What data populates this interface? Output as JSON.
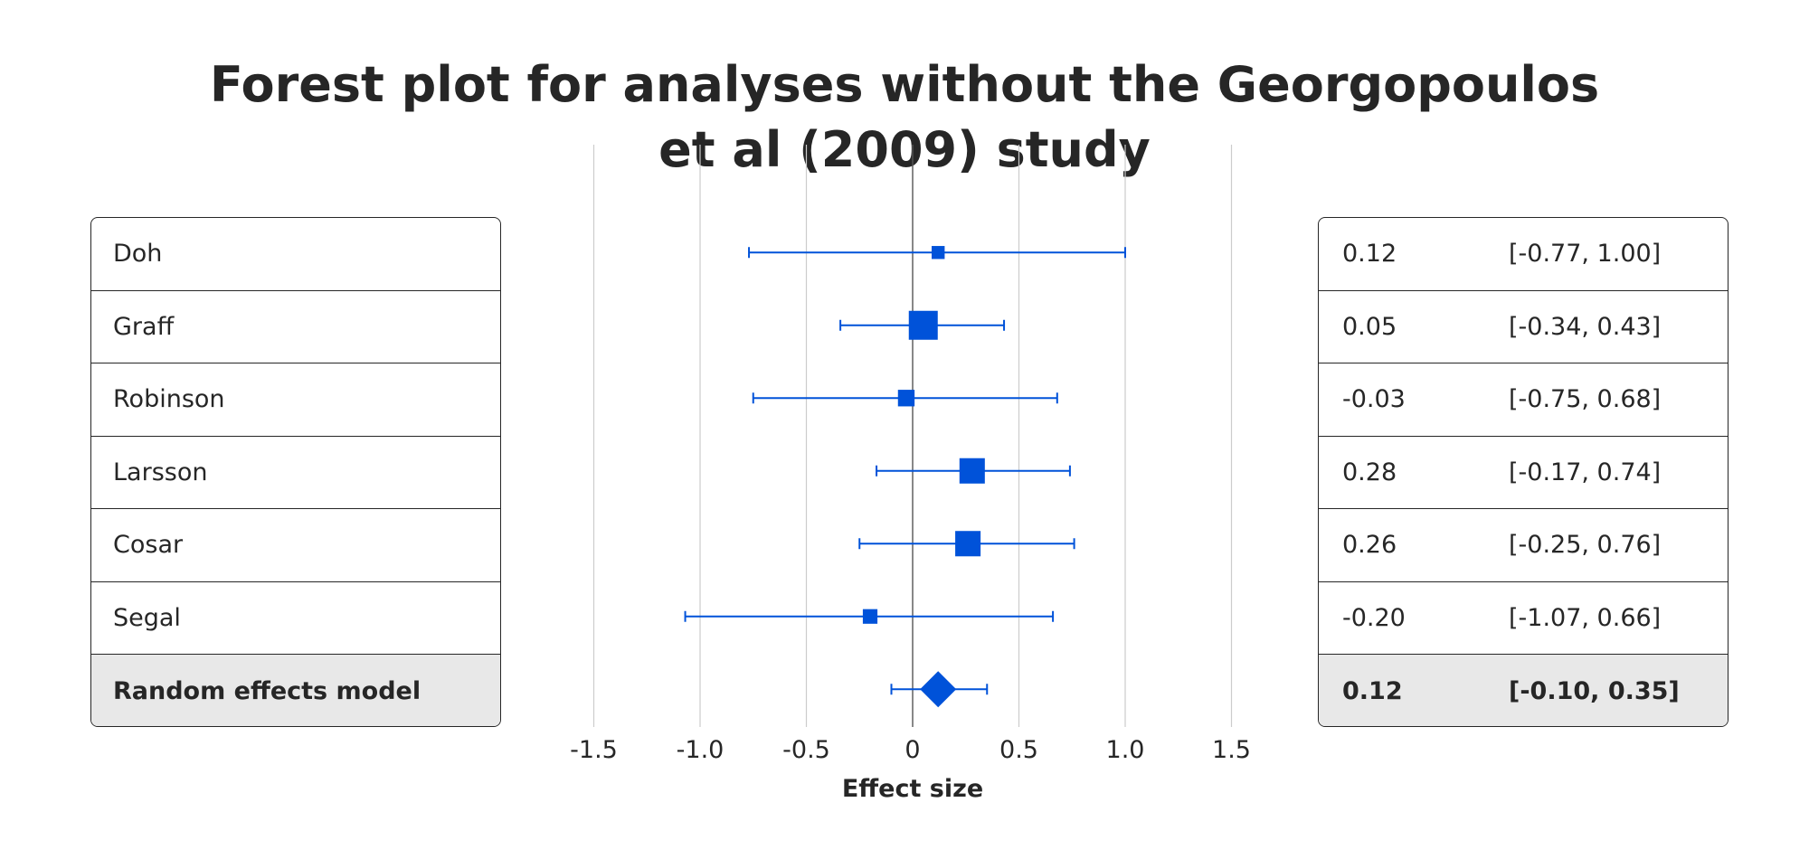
{
  "chart_data": {
    "type": "forest",
    "title": [
      "Forest plot for analyses without the Georgopoulos",
      "et al (2009) study"
    ],
    "xlabel": "Effect size",
    "xlim": [
      -1.5,
      1.5
    ],
    "xticks": [
      -1.5,
      -1.0,
      -0.5,
      0,
      0.5,
      1.0,
      1.5
    ],
    "xtick_labels": [
      "-1.5",
      "-1.0",
      "-0.5",
      "0",
      "0.5",
      "1.0",
      "1.5"
    ],
    "grid": true,
    "studies": [
      {
        "name": "Doh",
        "estimate": 0.12,
        "lower": -0.77,
        "upper": 1.0,
        "estimate_text": "0.12",
        "ci_text": "[-0.77, 1.00]",
        "weight": 0.2
      },
      {
        "name": "Graff",
        "estimate": 0.05,
        "lower": -0.34,
        "upper": 0.43,
        "estimate_text": "0.05",
        "ci_text": "[-0.34, 0.43]",
        "weight": 1.0
      },
      {
        "name": "Robinson",
        "estimate": -0.03,
        "lower": -0.75,
        "upper": 0.68,
        "estimate_text": "-0.03",
        "ci_text": "[-0.75, 0.68]",
        "weight": 0.38
      },
      {
        "name": "Larsson",
        "estimate": 0.28,
        "lower": -0.17,
        "upper": 0.74,
        "estimate_text": "0.28",
        "ci_text": "[-0.17, 0.74]",
        "weight": 0.82
      },
      {
        "name": "Cosar",
        "estimate": 0.26,
        "lower": -0.25,
        "upper": 0.76,
        "estimate_text": "0.26",
        "ci_text": "[-0.25, 0.76]",
        "weight": 0.82
      },
      {
        "name": "Segal",
        "estimate": -0.2,
        "lower": -1.07,
        "upper": 0.66,
        "estimate_text": "-0.20",
        "ci_text": "[-1.07, 0.66]",
        "weight": 0.28
      }
    ],
    "summary": {
      "name": "Random effects model",
      "estimate": 0.12,
      "lower": -0.1,
      "upper": 0.35,
      "estimate_text": "0.12",
      "ci_text": "[-0.10, 0.35]"
    },
    "colors": {
      "marker": "#0052d9",
      "grid": "#cccccc",
      "zero_line": "#555555",
      "summary_row": "#e8e8e8",
      "text": "#262626"
    }
  }
}
